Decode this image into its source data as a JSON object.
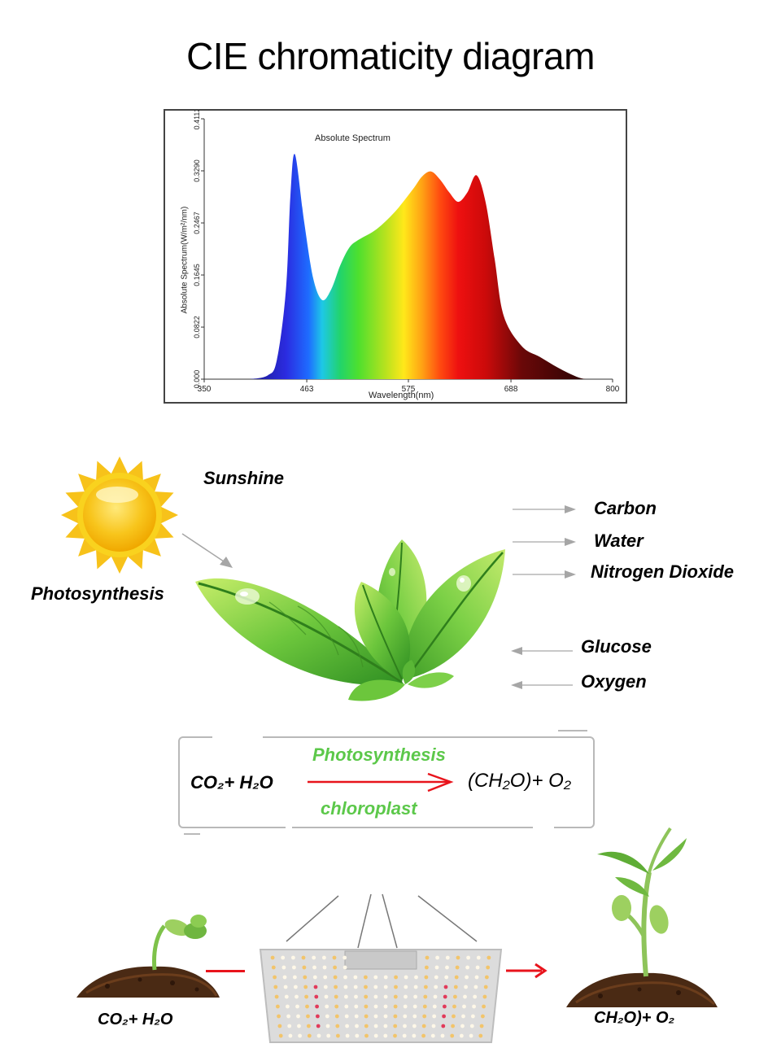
{
  "title": "CIE chromaticity diagram",
  "spectrum": {
    "chart_title": "Absolute Spectrum",
    "x_axis_label": "Wavelength(nm)",
    "y_axis_label": "Absolute Spectrum(W/m²/nm)",
    "x_ticks": [
      "350",
      "463",
      "575",
      "688",
      "800"
    ],
    "y_ticks": [
      "0.000",
      "0.0822",
      "0.1645",
      "0.2467",
      "0.3290",
      "0.4112"
    ]
  },
  "chart_data": {
    "type": "area",
    "title": "Absolute Spectrum",
    "xlabel": "Wavelength(nm)",
    "ylabel": "Absolute Spectrum(W/m²/nm)",
    "xlim": [
      350,
      800
    ],
    "ylim": [
      0,
      0.4112
    ],
    "x": [
      400,
      420,
      430,
      440,
      445,
      450,
      460,
      470,
      480,
      490,
      500,
      510,
      520,
      540,
      560,
      580,
      590,
      600,
      610,
      620,
      630,
      640,
      650,
      660,
      670,
      680,
      700,
      720,
      740,
      760,
      770
    ],
    "y": [
      0.0,
      0.006,
      0.03,
      0.14,
      0.29,
      0.355,
      0.25,
      0.16,
      0.125,
      0.142,
      0.18,
      0.208,
      0.22,
      0.237,
      0.264,
      0.3,
      0.32,
      0.328,
      0.315,
      0.295,
      0.28,
      0.295,
      0.322,
      0.28,
      0.19,
      0.1,
      0.052,
      0.035,
      0.018,
      0.004,
      0.0
    ]
  },
  "photosynthesis_diagram": {
    "sunshine_label": "Sunshine",
    "photosynthesis_label": "Photosynthesis",
    "outputs_right": [
      "Carbon",
      "Water",
      "Nitrogen Dioxide"
    ],
    "inputs_right": [
      "Glucose",
      "Oxygen"
    ]
  },
  "equation": {
    "reactants": "CO₂+ H₂O",
    "products": "(CH₂O)+ O₂",
    "condition_top": "Photosynthesis",
    "condition_bottom": "chloroplast"
  },
  "bottom": {
    "left_formula": "CO₂+ H₂O",
    "right_formula": "CH₂O)+ O₂"
  },
  "colors": {
    "arrow_red": "#e8141c",
    "condition_green": "#5cc84a",
    "arrow_gray": "#a6a6a6",
    "sun_yellow": "#f5c518"
  }
}
